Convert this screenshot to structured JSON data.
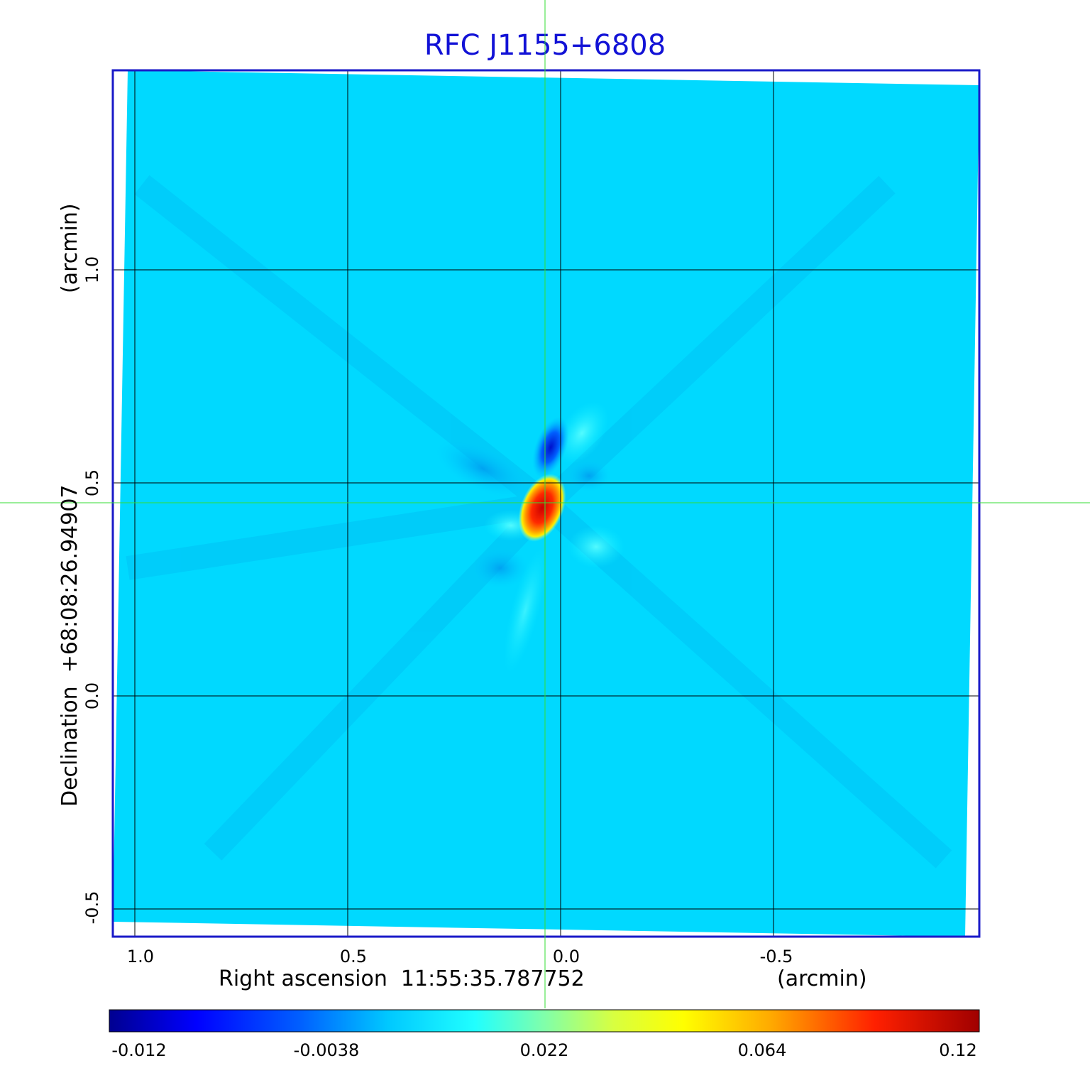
{
  "title": "RFC J1155+6808",
  "x_axis": {
    "label": "Right ascension  11:55:35.787752",
    "unit": "(arcmin)",
    "ticks": [
      "1.0",
      "0.5",
      "0.0",
      "-0.5"
    ]
  },
  "y_axis": {
    "label": "Declination  +68:08:26.94907",
    "unit": "(arcmin)",
    "ticks": [
      "1.0",
      "0.5",
      "0.0",
      "-0.5"
    ]
  },
  "colorbar": {
    "ticks": [
      "-0.012",
      "-0.0038",
      "0.022",
      "0.064",
      "0.12"
    ]
  },
  "colors": {
    "title": "#1212d6",
    "frame": "#1a1ac8",
    "background_map": "#00d9ff",
    "crosshair": "#33dd33",
    "grid": "#000000"
  }
}
